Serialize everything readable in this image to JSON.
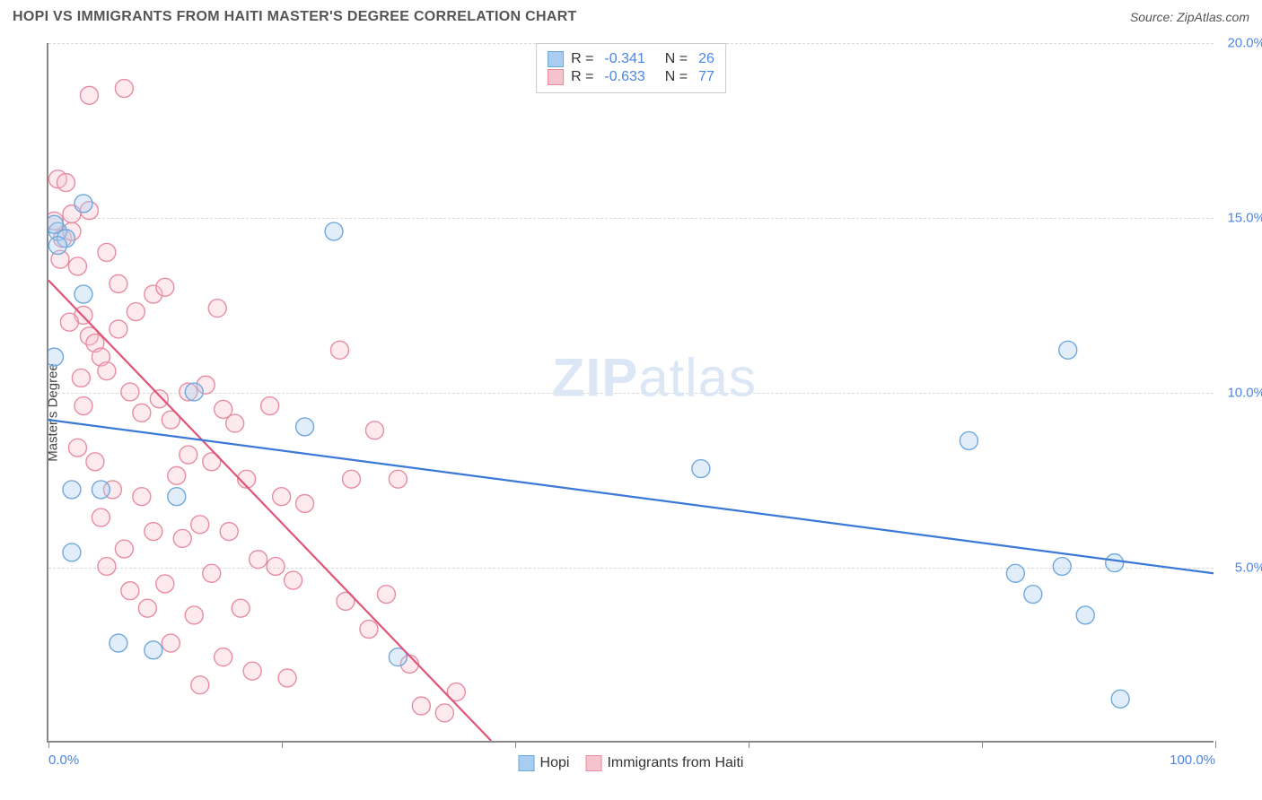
{
  "header": {
    "title": "HOPI VS IMMIGRANTS FROM HAITI MASTER'S DEGREE CORRELATION CHART",
    "source_label": "Source: ",
    "source_name": "ZipAtlas.com"
  },
  "chart": {
    "type": "scatter",
    "ylabel": "Master's Degree",
    "xlim": [
      0,
      100
    ],
    "ylim": [
      0,
      20
    ],
    "xtick_positions": [
      0,
      20,
      40,
      60,
      80,
      100
    ],
    "xtick_labels": {
      "0": "0.0%",
      "100": "100.0%"
    },
    "ytick_positions": [
      5,
      10,
      15,
      20
    ],
    "ytick_labels": {
      "5": "5.0%",
      "10": "10.0%",
      "15": "15.0%",
      "20": "20.0%"
    },
    "grid_color": "#d9d9d9",
    "axis_color": "#888888",
    "tick_label_color": "#4a86e8",
    "marker_radius": 10,
    "marker_fill_opacity": 0.35,
    "marker_stroke_width": 1.4,
    "line_width": 2.2,
    "background_color": "#ffffff",
    "watermark": {
      "bold": "ZIP",
      "light": "atlas",
      "color": "#dbe7f5",
      "fontsize": 60
    }
  },
  "series": [
    {
      "key": "hopi",
      "label": "Hopi",
      "color_fill": "#a9cdf0",
      "color_stroke": "#6fa8dc",
      "line_color": "#3b78d8",
      "R": "-0.341",
      "N": "26",
      "trendline": {
        "x1": 0,
        "y1": 9.2,
        "x2": 100,
        "y2": 4.8
      },
      "points": [
        [
          0.8,
          14.6
        ],
        [
          0.5,
          14.8
        ],
        [
          3.0,
          15.4
        ],
        [
          0.5,
          11.0
        ],
        [
          2.0,
          7.2
        ],
        [
          2.0,
          5.4
        ],
        [
          4.5,
          7.2
        ],
        [
          6.0,
          2.8
        ],
        [
          9.0,
          2.6
        ],
        [
          11.0,
          7.0
        ],
        [
          12.5,
          10.0
        ],
        [
          22.0,
          9.0
        ],
        [
          24.5,
          14.6
        ],
        [
          30.0,
          2.4
        ],
        [
          56.0,
          7.8
        ],
        [
          79.0,
          8.6
        ],
        [
          83.0,
          4.8
        ],
        [
          84.5,
          4.2
        ],
        [
          87.0,
          5.0
        ],
        [
          87.5,
          11.2
        ],
        [
          89.0,
          3.6
        ],
        [
          92.0,
          1.2
        ],
        [
          91.5,
          5.1
        ],
        [
          3.0,
          12.8
        ],
        [
          1.5,
          14.4
        ],
        [
          0.8,
          14.2
        ]
      ]
    },
    {
      "key": "haiti",
      "label": "Immigrants from Haiti",
      "color_fill": "#f6c3cd",
      "color_stroke": "#e88ca0",
      "line_color": "#e05577",
      "R": "-0.633",
      "N": "77",
      "trendline": {
        "x1": 0,
        "y1": 13.2,
        "x2": 38,
        "y2": 0
      },
      "points": [
        [
          0.8,
          16.1
        ],
        [
          0.5,
          14.9
        ],
        [
          1.2,
          14.4
        ],
        [
          1.0,
          13.8
        ],
        [
          2.0,
          14.6
        ],
        [
          3.5,
          18.5
        ],
        [
          6.5,
          18.7
        ],
        [
          1.5,
          16.0
        ],
        [
          2.0,
          15.1
        ],
        [
          2.5,
          13.6
        ],
        [
          3.0,
          12.2
        ],
        [
          3.5,
          11.6
        ],
        [
          4.0,
          11.4
        ],
        [
          4.5,
          11.0
        ],
        [
          5.0,
          10.6
        ],
        [
          6.0,
          13.1
        ],
        [
          6.0,
          11.8
        ],
        [
          7.0,
          10.0
        ],
        [
          7.5,
          12.3
        ],
        [
          8.0,
          9.4
        ],
        [
          9.0,
          12.8
        ],
        [
          9.5,
          9.8
        ],
        [
          10.0,
          13.0
        ],
        [
          10.5,
          9.2
        ],
        [
          11.0,
          7.6
        ],
        [
          12.0,
          10.0
        ],
        [
          12.0,
          8.2
        ],
        [
          13.0,
          6.2
        ],
        [
          13.5,
          10.2
        ],
        [
          14.0,
          8.0
        ],
        [
          14.5,
          12.4
        ],
        [
          15.0,
          9.5
        ],
        [
          15.5,
          6.0
        ],
        [
          16.0,
          9.1
        ],
        [
          17.0,
          7.5
        ],
        [
          18.0,
          5.2
        ],
        [
          19.0,
          9.6
        ],
        [
          20.0,
          7.0
        ],
        [
          21.0,
          4.6
        ],
        [
          22.0,
          6.8
        ],
        [
          25.0,
          11.2
        ],
        [
          25.5,
          4.0
        ],
        [
          26.0,
          7.5
        ],
        [
          27.5,
          3.2
        ],
        [
          28.0,
          8.9
        ],
        [
          29.0,
          4.2
        ],
        [
          30.0,
          7.5
        ],
        [
          31.0,
          2.2
        ],
        [
          32.0,
          1.0
        ],
        [
          35.0,
          1.4
        ],
        [
          2.5,
          8.4
        ],
        [
          3.0,
          9.6
        ],
        [
          4.0,
          8.0
        ],
        [
          4.5,
          6.4
        ],
        [
          5.0,
          5.0
        ],
        [
          5.5,
          7.2
        ],
        [
          6.5,
          5.5
        ],
        [
          7.0,
          4.3
        ],
        [
          8.0,
          7.0
        ],
        [
          8.5,
          3.8
        ],
        [
          9.0,
          6.0
        ],
        [
          10.0,
          4.5
        ],
        [
          10.5,
          2.8
        ],
        [
          11.5,
          5.8
        ],
        [
          12.5,
          3.6
        ],
        [
          13.0,
          1.6
        ],
        [
          14.0,
          4.8
        ],
        [
          15.0,
          2.4
        ],
        [
          16.5,
          3.8
        ],
        [
          17.5,
          2.0
        ],
        [
          19.5,
          5.0
        ],
        [
          20.5,
          1.8
        ],
        [
          34.0,
          0.8
        ],
        [
          3.5,
          15.2
        ],
        [
          5.0,
          14.0
        ],
        [
          1.8,
          12.0
        ],
        [
          2.8,
          10.4
        ]
      ]
    }
  ],
  "legend_top": {
    "R_label": "R",
    "N_label": "N",
    "equals": "="
  },
  "legend_bottom": {}
}
